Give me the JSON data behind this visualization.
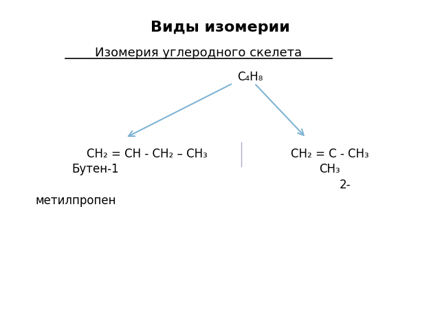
{
  "title": "Виды изомерии",
  "subtitle": "Изомерия углеродного скелета",
  "formula_top": "C₄H₈",
  "arrow_color": "#7fb3d3",
  "left_formula_line1": "CH₂ = CH - CH₂ – CH₃",
  "left_label": "Бутен-1",
  "right_formula_line1": "CH₂ = C - CH₃",
  "right_formula_line2": "CH₃",
  "right_label_line1": "2-",
  "right_label_line2": "метилпропен",
  "bg_color": "#ffffff",
  "text_color": "#000000",
  "divider_color": "#aaaacc"
}
